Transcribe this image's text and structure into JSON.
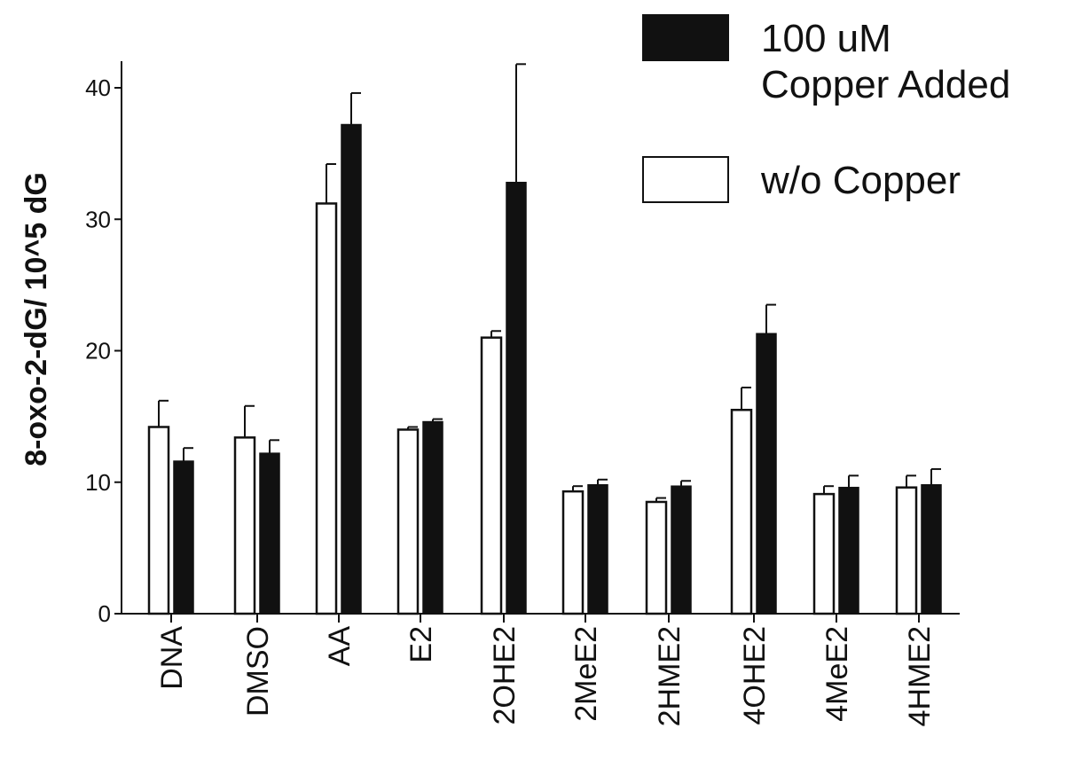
{
  "chart_data": {
    "type": "bar",
    "title": "",
    "xlabel": "",
    "ylabel": "8-oxo-2-dG/ 10^5 dG",
    "ylim": [
      0,
      40
    ],
    "yticks": [
      0,
      10,
      20,
      30,
      40
    ],
    "grid": false,
    "legend_position": "top-right",
    "categories": [
      "DNA",
      "DMSO",
      "AA",
      "E2",
      "2OHE2",
      "2MeE2",
      "2HME2",
      "4OHE2",
      "4MeE2",
      "4HME2"
    ],
    "series": [
      {
        "name": "w/o Copper",
        "fill": "#ffffff",
        "values": [
          14.2,
          13.4,
          31.2,
          14.0,
          21.0,
          9.3,
          8.5,
          15.5,
          9.1,
          9.6
        ],
        "errors": [
          2.0,
          2.4,
          3.0,
          0.2,
          0.5,
          0.4,
          0.3,
          1.7,
          0.6,
          0.9
        ]
      },
      {
        "name": "100 uM Copper Added",
        "fill": "#111111",
        "values": [
          11.6,
          12.2,
          37.2,
          14.6,
          32.8,
          9.8,
          9.7,
          21.3,
          9.6,
          9.8
        ],
        "errors": [
          1.0,
          1.0,
          2.4,
          0.2,
          9.0,
          0.4,
          0.4,
          2.2,
          0.9,
          1.2
        ]
      }
    ],
    "legend": {
      "entries": [
        {
          "series": "100 uM Copper Added",
          "lines": [
            "100 uM",
            "Copper Added"
          ],
          "fill": "#111111"
        },
        {
          "series": "w/o Copper",
          "lines": [
            "w/o Copper"
          ],
          "fill": "#ffffff"
        }
      ]
    }
  }
}
